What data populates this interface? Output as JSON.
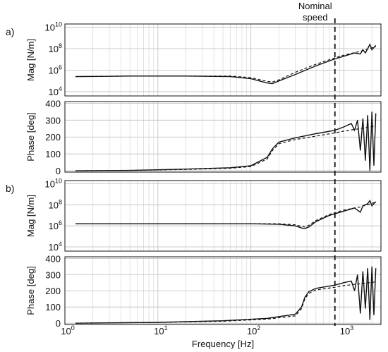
{
  "chart_data": {
    "type": "line",
    "x_scale": "log",
    "xlim": [
      1,
      2500
    ],
    "xlabel": "Frequency [Hz]",
    "x_ticks": [
      {
        "base": "10",
        "exp": "0",
        "value": 1
      },
      {
        "base": "10",
        "exp": "1",
        "value": 10
      },
      {
        "base": "10",
        "exp": "2",
        "value": 100
      },
      {
        "base": "10",
        "exp": "3",
        "value": 1000
      }
    ],
    "grid": true,
    "annotation": {
      "text_line1": "Nominal",
      "text_line2": "speed",
      "x": 800
    },
    "mag_ylabel": "Mag [N/m]",
    "phase_ylabel": "Phase [deg]",
    "mag_ticks": [
      {
        "base": "10",
        "exp": "4",
        "value": 4
      },
      {
        "base": "10",
        "exp": "6",
        "value": 6
      },
      {
        "base": "10",
        "exp": "8",
        "value": 8
      },
      {
        "base": "10",
        "exp": "10",
        "value": 10
      }
    ],
    "phase_ticks": [
      {
        "label": "0",
        "value": 0
      },
      {
        "label": "100",
        "value": 100
      },
      {
        "label": "200",
        "value": 200
      },
      {
        "label": "300",
        "value": 300
      },
      {
        "label": "400",
        "value": 400
      }
    ],
    "panels": [
      {
        "letter": "a)",
        "mag_log10": {
          "solid": [
            [
              1.3,
              5.4
            ],
            [
              5,
              5.45
            ],
            [
              20,
              5.45
            ],
            [
              60,
              5.4
            ],
            [
              100,
              5.2
            ],
            [
              150,
              4.8
            ],
            [
              170,
              4.75
            ],
            [
              200,
              5.0
            ],
            [
              300,
              5.6
            ],
            [
              500,
              6.4
            ],
            [
              800,
              7.05
            ],
            [
              1000,
              7.3
            ],
            [
              1300,
              7.6
            ],
            [
              1500,
              7.5
            ],
            [
              1600,
              7.9
            ],
            [
              1700,
              7.6
            ],
            [
              1800,
              8.0
            ],
            [
              1900,
              8.4
            ],
            [
              2000,
              7.9
            ],
            [
              2200,
              8.3
            ]
          ],
          "dashed": [
            [
              1.3,
              5.4
            ],
            [
              5,
              5.45
            ],
            [
              20,
              5.45
            ],
            [
              60,
              5.45
            ],
            [
              100,
              5.3
            ],
            [
              150,
              4.95
            ],
            [
              170,
              4.9
            ],
            [
              200,
              5.1
            ],
            [
              300,
              5.8
            ],
            [
              500,
              6.55
            ],
            [
              800,
              7.15
            ],
            [
              1000,
              7.4
            ],
            [
              1500,
              7.75
            ],
            [
              2200,
              8.2
            ]
          ]
        },
        "phase_deg": {
          "solid": [
            [
              1.3,
              0
            ],
            [
              5,
              2
            ],
            [
              20,
              10
            ],
            [
              60,
              18
            ],
            [
              100,
              30
            ],
            [
              150,
              80
            ],
            [
              170,
              130
            ],
            [
              200,
              170
            ],
            [
              300,
              195
            ],
            [
              500,
              220
            ],
            [
              800,
              240
            ],
            [
              1000,
              260
            ],
            [
              1200,
              280
            ],
            [
              1300,
              240
            ],
            [
              1400,
              300
            ],
            [
              1500,
              120
            ],
            [
              1600,
              310
            ],
            [
              1700,
              60
            ],
            [
              1800,
              330
            ],
            [
              1900,
              0
            ],
            [
              2000,
              350
            ],
            [
              2100,
              30
            ],
            [
              2200,
              340
            ]
          ],
          "dashed": [
            [
              1.3,
              0
            ],
            [
              5,
              2
            ],
            [
              20,
              8
            ],
            [
              60,
              15
            ],
            [
              100,
              25
            ],
            [
              150,
              70
            ],
            [
              170,
              120
            ],
            [
              200,
              160
            ],
            [
              300,
              185
            ],
            [
              500,
              205
            ],
            [
              800,
              225
            ],
            [
              1000,
              235
            ],
            [
              2200,
              265
            ]
          ]
        }
      },
      {
        "letter": "b)",
        "mag_log10": {
          "solid": [
            [
              1.3,
              6.2
            ],
            [
              5,
              6.2
            ],
            [
              20,
              6.2
            ],
            [
              100,
              6.2
            ],
            [
              200,
              6.15
            ],
            [
              300,
              6.0
            ],
            [
              350,
              5.8
            ],
            [
              380,
              5.75
            ],
            [
              420,
              5.9
            ],
            [
              500,
              6.4
            ],
            [
              700,
              7.0
            ],
            [
              1000,
              7.4
            ],
            [
              1300,
              7.7
            ],
            [
              1500,
              7.3
            ],
            [
              1600,
              7.9
            ],
            [
              1800,
              8.1
            ],
            [
              1900,
              8.4
            ],
            [
              2000,
              7.9
            ],
            [
              2200,
              8.3
            ]
          ],
          "dashed": [
            [
              1.3,
              6.2
            ],
            [
              5,
              6.2
            ],
            [
              20,
              6.2
            ],
            [
              100,
              6.2
            ],
            [
              200,
              6.2
            ],
            [
              300,
              6.1
            ],
            [
              350,
              5.95
            ],
            [
              380,
              5.9
            ],
            [
              420,
              6.05
            ],
            [
              500,
              6.5
            ],
            [
              700,
              7.1
            ],
            [
              1000,
              7.5
            ],
            [
              1500,
              7.8
            ],
            [
              2200,
              8.25
            ]
          ]
        },
        "phase_deg": {
          "solid": [
            [
              1.3,
              0
            ],
            [
              10,
              5
            ],
            [
              50,
              15
            ],
            [
              150,
              30
            ],
            [
              300,
              55
            ],
            [
              350,
              100
            ],
            [
              380,
              160
            ],
            [
              420,
              195
            ],
            [
              500,
              215
            ],
            [
              800,
              235
            ],
            [
              1000,
              250
            ],
            [
              1200,
              260
            ],
            [
              1300,
              200
            ],
            [
              1400,
              300
            ],
            [
              1500,
              60
            ],
            [
              1600,
              320
            ],
            [
              1700,
              90
            ],
            [
              1800,
              340
            ],
            [
              1900,
              20
            ],
            [
              2000,
              350
            ],
            [
              2100,
              50
            ],
            [
              2200,
              340
            ]
          ],
          "dashed": [
            [
              1.3,
              0
            ],
            [
              10,
              5
            ],
            [
              50,
              12
            ],
            [
              150,
              25
            ],
            [
              300,
              45
            ],
            [
              350,
              90
            ],
            [
              380,
              150
            ],
            [
              420,
              185
            ],
            [
              500,
              205
            ],
            [
              800,
              222
            ],
            [
              1000,
              232
            ],
            [
              2200,
              255
            ]
          ]
        }
      }
    ]
  }
}
